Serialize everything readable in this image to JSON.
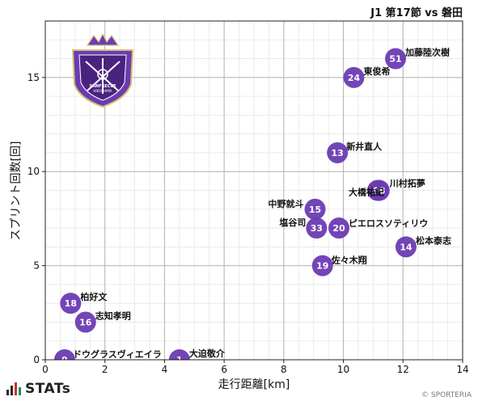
{
  "header": {
    "title": "J1 第17節 vs 磐田"
  },
  "footer": {
    "logo_text": "STATs",
    "copyright": "© SPORTERIA"
  },
  "crest": {
    "top_text": "SANFRECCE",
    "bottom_text": "HIROSHIMA"
  },
  "colors": {
    "marker": "#6b3bb3",
    "marker_text": "#ffffff",
    "grid_major": "#b3b3b3",
    "grid_minor": "#e6e6e6"
  },
  "chart_data": {
    "type": "scatter",
    "xlabel": "走行距離[km]",
    "ylabel": "スプリント回数[回]",
    "xlim": [
      0,
      14
    ],
    "ylim": [
      0,
      18
    ],
    "xticks": [
      0,
      2,
      4,
      6,
      8,
      10,
      12,
      14
    ],
    "yticks": [
      0,
      5,
      10,
      15
    ],
    "grid": true,
    "points": [
      {
        "number": "51",
        "name": "加藤陸次樹",
        "x": 11.75,
        "y": 16
      },
      {
        "number": "24",
        "name": "東俊希",
        "x": 10.35,
        "y": 15
      },
      {
        "number": "13",
        "name": "新井直人",
        "x": 9.8,
        "y": 11
      },
      {
        "number": "7",
        "name": "大橋祐紀",
        "x": 11.15,
        "y": 9
      },
      {
        "number": "98",
        "name": "川村拓夢",
        "x": 11.2,
        "y": 9
      },
      {
        "number": "15",
        "name": "中野就斗",
        "x": 9.05,
        "y": 8
      },
      {
        "number": "33",
        "name": "塩谷司",
        "x": 9.1,
        "y": 7
      },
      {
        "number": "20",
        "name": "ピエロスソティリウ",
        "x": 9.85,
        "y": 7
      },
      {
        "number": "14",
        "name": "松本泰志",
        "x": 12.1,
        "y": 6
      },
      {
        "number": "19",
        "name": "佐々木翔",
        "x": 9.3,
        "y": 5
      },
      {
        "number": "18",
        "name": "柏好文",
        "x": 0.85,
        "y": 3
      },
      {
        "number": "16",
        "name": "志知孝明",
        "x": 1.35,
        "y": 2
      },
      {
        "number": "9",
        "name": "ドウグラスヴィエイラ",
        "x": 0.65,
        "y": 0
      },
      {
        "number": "1",
        "name": "大迫敬介",
        "x": 4.5,
        "y": 0
      }
    ]
  }
}
